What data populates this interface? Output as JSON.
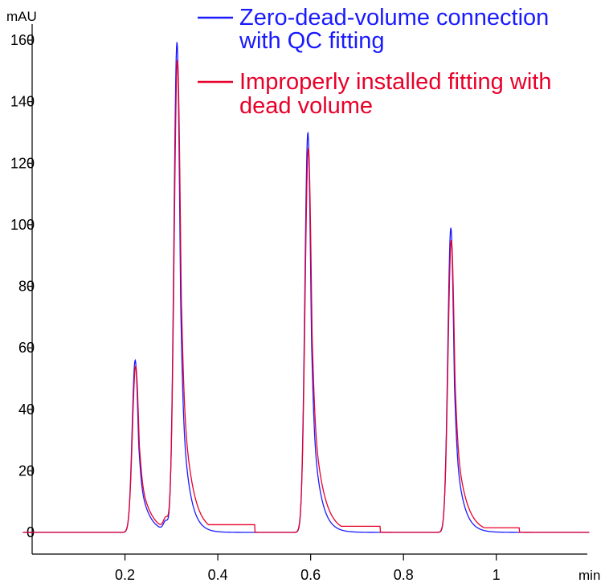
{
  "chart_data": {
    "type": "line",
    "ylabel": "mAU",
    "xlabel": "min",
    "xlim": [
      -0.02,
      1.2
    ],
    "ylim": [
      -8,
      165
    ],
    "x_ticks": [
      0.2,
      0.4,
      0.6,
      0.8,
      1
    ],
    "x_tick_labels": [
      "0.2",
      "0.4",
      "0.6",
      "0.8",
      "1"
    ],
    "y_ticks": [
      0,
      20,
      40,
      60,
      80,
      100,
      120,
      140,
      160
    ],
    "y_tick_labels": [
      "0",
      "20",
      "40",
      "60",
      "80",
      "100",
      "120",
      "140",
      "160"
    ],
    "grid": false,
    "legend_position": "top-right",
    "series": [
      {
        "name": "Zero-dead-volume connection with QC fitting",
        "legend_lines": [
          "Zero-dead-volume connection",
          "with QC fitting"
        ],
        "color": "#1a1aff",
        "peaks": [
          {
            "rt": 0.222,
            "height": 56,
            "sigma": 0.0065,
            "tail": 0.018
          },
          {
            "rt": 0.288,
            "height": 3,
            "sigma": 0.005,
            "tail": 0.01
          },
          {
            "rt": 0.312,
            "height": 159,
            "sigma": 0.0065,
            "tail": 0.015
          },
          {
            "rt": 0.594,
            "height": 130,
            "sigma": 0.0065,
            "tail": 0.016
          },
          {
            "rt": 0.902,
            "height": 99,
            "sigma": 0.0065,
            "tail": 0.016
          }
        ]
      },
      {
        "name": "Improperly installed fitting with dead volume",
        "legend_lines": [
          "Improperly installed fitting with",
          "dead volume"
        ],
        "color": "#e8002a",
        "peaks": [
          {
            "rt": 0.223,
            "height": 54,
            "sigma": 0.007,
            "tail": 0.021
          },
          {
            "rt": 0.288,
            "height": 3.5,
            "sigma": 0.005,
            "tail": 0.01
          },
          {
            "rt": 0.313,
            "height": 153,
            "sigma": 0.007,
            "tail": 0.019
          },
          {
            "rt": 0.595,
            "height": 125,
            "sigma": 0.007,
            "tail": 0.02
          },
          {
            "rt": 0.903,
            "height": 95,
            "sigma": 0.007,
            "tail": 0.02
          }
        ],
        "tails": [
          {
            "start": 0.33,
            "end": 0.48,
            "level": 2.5
          },
          {
            "start": 0.61,
            "end": 0.75,
            "level": 2.0
          },
          {
            "start": 0.92,
            "end": 1.05,
            "level": 1.5
          }
        ]
      }
    ]
  }
}
